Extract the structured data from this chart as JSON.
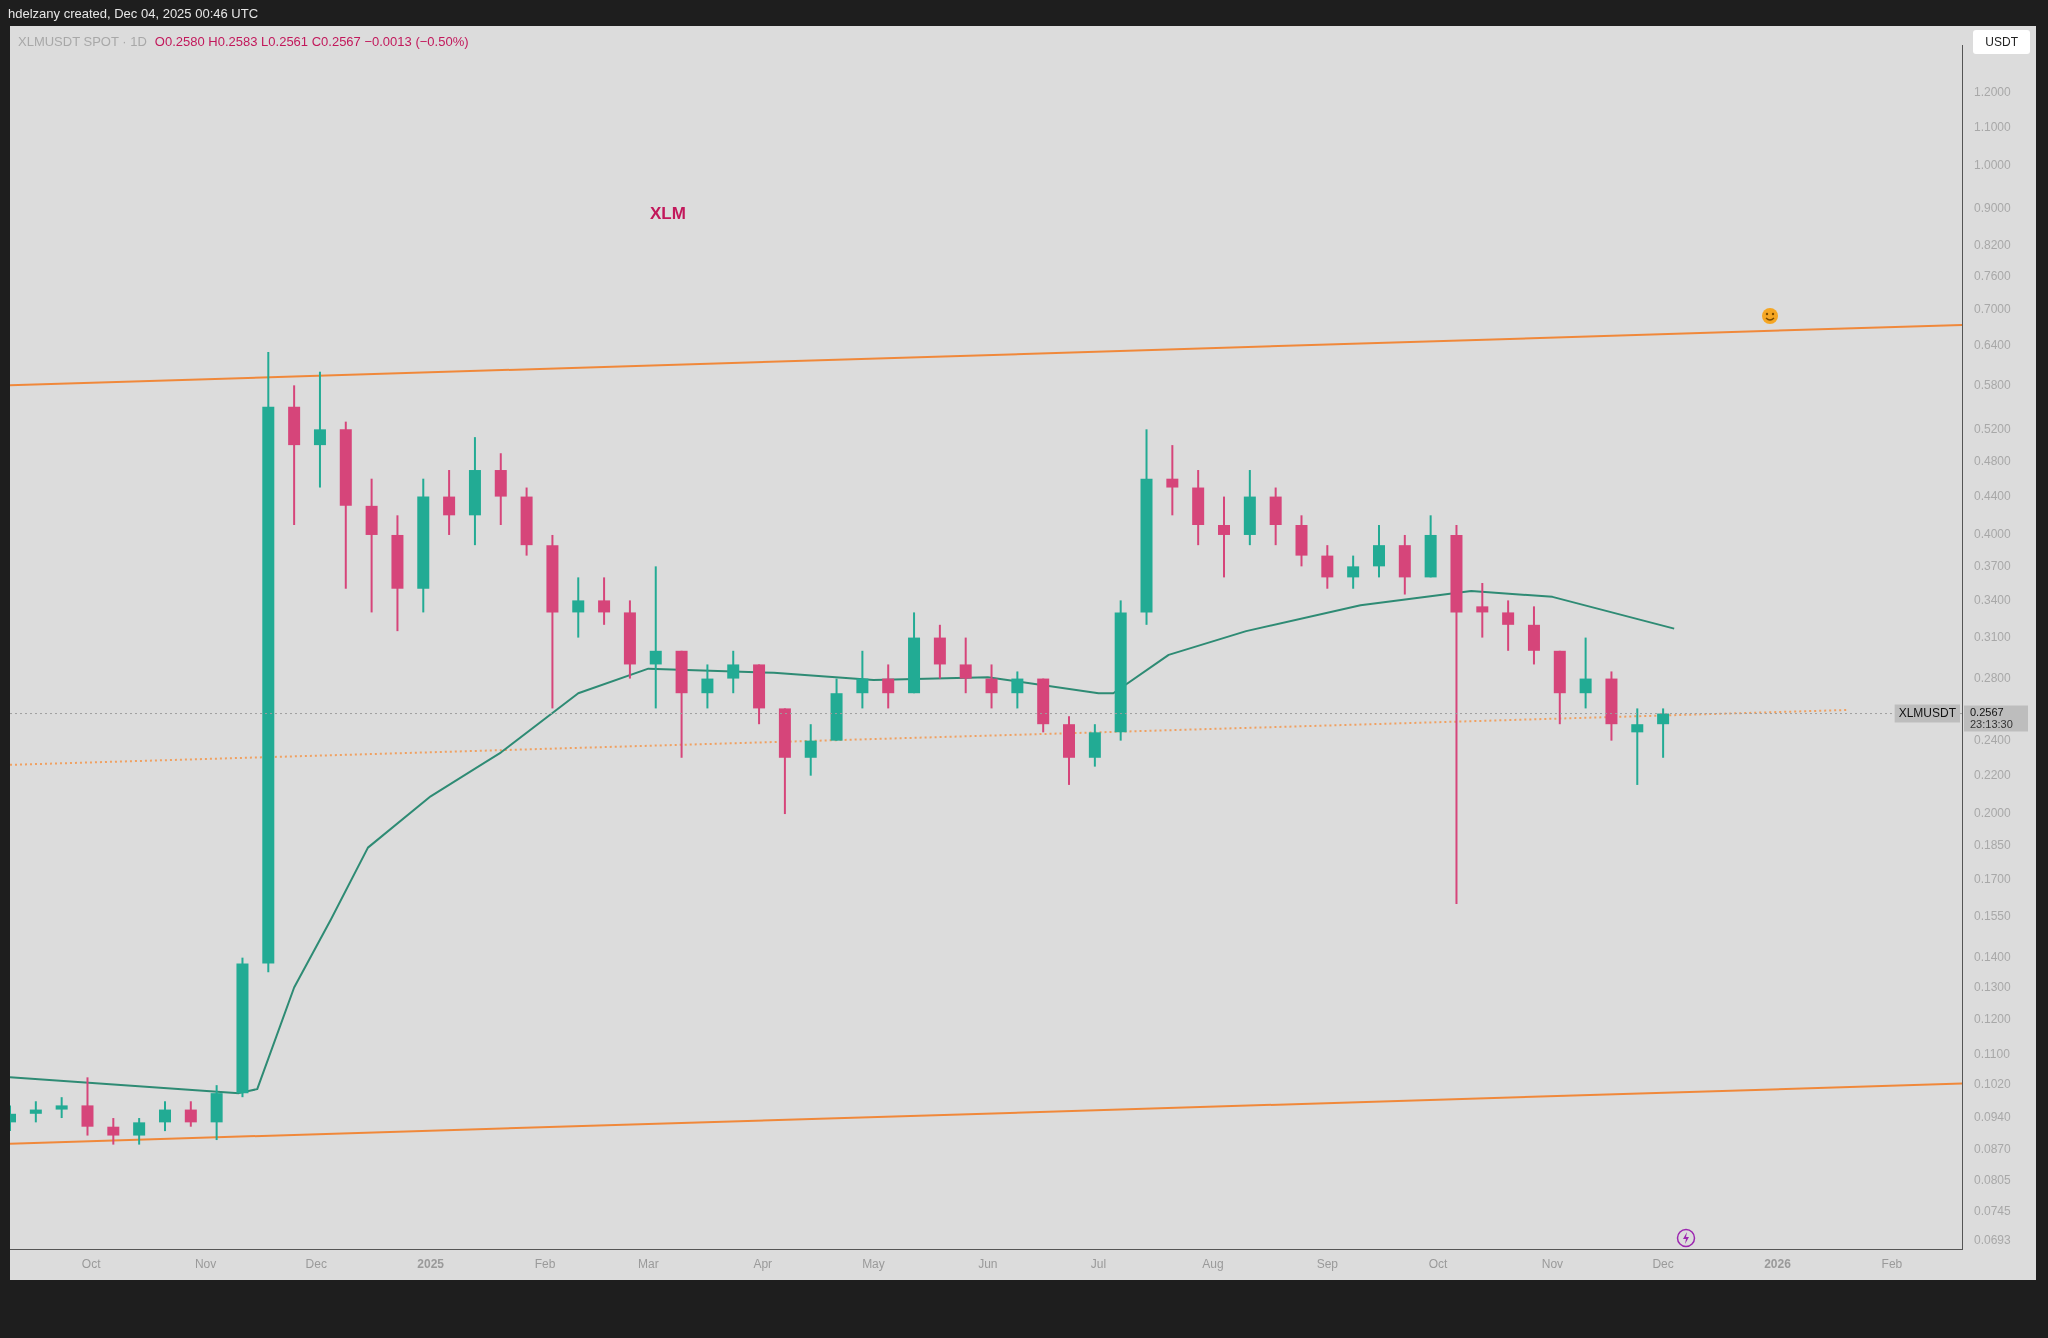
{
  "chart_data": {
    "type": "candlestick",
    "title": "XLMUSDT SPOT · 1D",
    "subtitle": "O0.2580 H0.2583 L0.2561 C0.2567 −0.0013 (−0.50%)",
    "ylabel": "USDT",
    "annotations": [
      "hdelzany created, Dec 04, 2025 00:46 UTC",
      "XLM",
      "0.2567",
      "23:13:30"
    ],
    "x": [
      "2024-09-09",
      "2024-09-16",
      "2024-09-23",
      "2024-09-30",
      "2024-10-07",
      "2024-10-14",
      "2024-10-21",
      "2024-10-28",
      "2024-11-04",
      "2024-11-11",
      "2024-11-18",
      "2024-11-25",
      "2024-12-02",
      "2024-12-09",
      "2024-12-16",
      "2024-12-23",
      "2024-12-30",
      "2025-01-06",
      "2025-01-13",
      "2025-01-20",
      "2025-01-27",
      "2025-02-03",
      "2025-02-10",
      "2025-02-17",
      "2025-02-24",
      "2025-03-03",
      "2025-03-10",
      "2025-03-17",
      "2025-03-24",
      "2025-03-31",
      "2025-04-07",
      "2025-04-14",
      "2025-04-21",
      "2025-04-28",
      "2025-05-05",
      "2025-05-12",
      "2025-05-19",
      "2025-05-26",
      "2025-06-02",
      "2025-06-09",
      "2025-06-16",
      "2025-06-23",
      "2025-06-30",
      "2025-07-07",
      "2025-07-14",
      "2025-07-21",
      "2025-07-28",
      "2025-08-04",
      "2025-08-11",
      "2025-08-18",
      "2025-08-25",
      "2025-09-01",
      "2025-09-08",
      "2025-09-15",
      "2025-09-22",
      "2025-09-29",
      "2025-10-06",
      "2025-10-13",
      "2025-10-20",
      "2025-10-27",
      "2025-11-03",
      "2025-11-10",
      "2025-11-17",
      "2025-11-24",
      "2025-12-01"
    ],
    "ohlc": [
      [
        0.093,
        0.097,
        0.091,
        0.095
      ],
      [
        0.095,
        0.098,
        0.093,
        0.096
      ],
      [
        0.096,
        0.099,
        0.094,
        0.097
      ],
      [
        0.097,
        0.104,
        0.09,
        0.092
      ],
      [
        0.092,
        0.094,
        0.088,
        0.09
      ],
      [
        0.09,
        0.094,
        0.088,
        0.093
      ],
      [
        0.093,
        0.098,
        0.091,
        0.096
      ],
      [
        0.096,
        0.098,
        0.092,
        0.093
      ],
      [
        0.093,
        0.102,
        0.089,
        0.1
      ],
      [
        0.1,
        0.14,
        0.099,
        0.138
      ],
      [
        0.138,
        0.63,
        0.135,
        0.55
      ],
      [
        0.55,
        0.58,
        0.41,
        0.5
      ],
      [
        0.5,
        0.6,
        0.45,
        0.52
      ],
      [
        0.52,
        0.53,
        0.35,
        0.43
      ],
      [
        0.43,
        0.46,
        0.33,
        0.4
      ],
      [
        0.4,
        0.42,
        0.315,
        0.35
      ],
      [
        0.35,
        0.46,
        0.33,
        0.44
      ],
      [
        0.44,
        0.47,
        0.4,
        0.42
      ],
      [
        0.42,
        0.51,
        0.39,
        0.47
      ],
      [
        0.47,
        0.49,
        0.41,
        0.44
      ],
      [
        0.44,
        0.45,
        0.38,
        0.39
      ],
      [
        0.39,
        0.4,
        0.26,
        0.33
      ],
      [
        0.33,
        0.36,
        0.31,
        0.34
      ],
      [
        0.34,
        0.36,
        0.32,
        0.33
      ],
      [
        0.33,
        0.34,
        0.28,
        0.29
      ],
      [
        0.29,
        0.37,
        0.26,
        0.3
      ],
      [
        0.3,
        0.3,
        0.23,
        0.27
      ],
      [
        0.27,
        0.29,
        0.26,
        0.28
      ],
      [
        0.28,
        0.3,
        0.27,
        0.29
      ],
      [
        0.29,
        0.29,
        0.25,
        0.26
      ],
      [
        0.26,
        0.26,
        0.2,
        0.23
      ],
      [
        0.23,
        0.25,
        0.22,
        0.24
      ],
      [
        0.24,
        0.28,
        0.24,
        0.27
      ],
      [
        0.27,
        0.3,
        0.26,
        0.28
      ],
      [
        0.28,
        0.29,
        0.26,
        0.27
      ],
      [
        0.27,
        0.33,
        0.27,
        0.31
      ],
      [
        0.31,
        0.32,
        0.28,
        0.29
      ],
      [
        0.29,
        0.31,
        0.27,
        0.28
      ],
      [
        0.28,
        0.29,
        0.26,
        0.27
      ],
      [
        0.27,
        0.285,
        0.26,
        0.28
      ],
      [
        0.28,
        0.28,
        0.245,
        0.25
      ],
      [
        0.25,
        0.255,
        0.215,
        0.23
      ],
      [
        0.23,
        0.25,
        0.225,
        0.245
      ],
      [
        0.245,
        0.34,
        0.24,
        0.33
      ],
      [
        0.33,
        0.52,
        0.32,
        0.46
      ],
      [
        0.46,
        0.5,
        0.42,
        0.45
      ],
      [
        0.45,
        0.47,
        0.39,
        0.41
      ],
      [
        0.41,
        0.44,
        0.36,
        0.4
      ],
      [
        0.4,
        0.47,
        0.39,
        0.44
      ],
      [
        0.44,
        0.45,
        0.39,
        0.41
      ],
      [
        0.41,
        0.42,
        0.37,
        0.38
      ],
      [
        0.38,
        0.39,
        0.35,
        0.36
      ],
      [
        0.36,
        0.38,
        0.35,
        0.37
      ],
      [
        0.37,
        0.41,
        0.36,
        0.39
      ],
      [
        0.39,
        0.4,
        0.345,
        0.36
      ],
      [
        0.36,
        0.42,
        0.36,
        0.4
      ],
      [
        0.4,
        0.41,
        0.16,
        0.33
      ],
      [
        0.335,
        0.355,
        0.31,
        0.33
      ],
      [
        0.33,
        0.34,
        0.3,
        0.32
      ],
      [
        0.32,
        0.335,
        0.29,
        0.3
      ],
      [
        0.3,
        0.3,
        0.25,
        0.27
      ],
      [
        0.27,
        0.31,
        0.26,
        0.28
      ],
      [
        0.28,
        0.285,
        0.24,
        0.25
      ],
      [
        0.245,
        0.26,
        0.215,
        0.25
      ],
      [
        0.25,
        0.26,
        0.23,
        0.2567
      ]
    ],
    "colors": [
      "#22ab94",
      "#22ab94",
      "#22ab94",
      "#d6457a",
      "#d6457a",
      "#22ab94",
      "#22ab94",
      "#d6457a",
      "#22ab94",
      "#22ab94",
      "#22ab94",
      "#d6457a",
      "#22ab94",
      "#d6457a",
      "#d6457a",
      "#d6457a",
      "#22ab94",
      "#d6457a",
      "#22ab94",
      "#d6457a",
      "#d6457a",
      "#d6457a",
      "#22ab94",
      "#d6457a",
      "#d6457a",
      "#22ab94",
      "#d6457a",
      "#22ab94",
      "#22ab94",
      "#d6457a",
      "#d6457a",
      "#22ab94",
      "#22ab94",
      "#22ab94",
      "#d6457a",
      "#22ab94",
      "#d6457a",
      "#d6457a",
      "#d6457a",
      "#22ab94",
      "#d6457a",
      "#d6457a",
      "#22ab94",
      "#22ab94",
      "#22ab94",
      "#d6457a",
      "#d6457a",
      "#d6457a",
      "#22ab94",
      "#d6457a",
      "#d6457a",
      "#d6457a",
      "#22ab94",
      "#22ab94",
      "#d6457a",
      "#22ab94",
      "#d6457a",
      "#d6457a",
      "#d6457a",
      "#d6457a",
      "#d6457a",
      "#22ab94",
      "#d6457a",
      "#22ab94",
      "#22ab94"
    ],
    "series": [
      {
        "type": "line",
        "color": "#2e8b74",
        "x": [
          "2024-09-09",
          "2024-11-10",
          "2024-11-15",
          "2024-11-25",
          "2024-12-05",
          "2024-12-15",
          "2025-01-01",
          "2025-01-20",
          "2025-02-10",
          "2025-03-01",
          "2025-04-04",
          "2025-05-01",
          "2025-06-01",
          "2025-07-01",
          "2025-07-05",
          "2025-07-20",
          "2025-08-10",
          "2025-09-10",
          "2025-10-10",
          "2025-11-01",
          "2025-12-04"
        ],
        "values": [
          0.104,
          0.1,
          0.101,
          0.13,
          0.154,
          0.184,
          0.209,
          0.233,
          0.27,
          0.287,
          0.284,
          0.279,
          0.281,
          0.27,
          0.27,
          0.297,
          0.315,
          0.336,
          0.348,
          0.343,
          0.317
        ]
      },
      {
        "type": "line",
        "color": "#f0883a",
        "x": [
          "2024-09-09",
          "2026-02-20"
        ],
        "values": [
          0.58,
          0.674
        ]
      },
      {
        "type": "line",
        "color": "#f0883a",
        "x": [
          "2024-09-09",
          "2026-02-20"
        ],
        "values": [
          0.0882,
          0.1024
        ]
      },
      {
        "type": "line",
        "color": "#f0a060",
        "line_style": "dotted",
        "x": [
          "2024-09-09",
          "2026-01-20"
        ],
        "values": [
          0.226,
          0.259
        ]
      }
    ],
    "ref_lines": [
      {
        "axis": "y",
        "value": 0.2567,
        "label": "XLMUSDT",
        "color": "#9e9e9e",
        "line_style": "dotted"
      }
    ],
    "xlim": [
      "2024-09-09",
      "2026-02-20"
    ],
    "xticks": [
      {
        "value": "2024-10-01",
        "label": "Oct"
      },
      {
        "value": "2024-11-01",
        "label": "Nov"
      },
      {
        "value": "2024-12-01",
        "label": "Dec"
      },
      {
        "value": "2025-01-01",
        "label": "2025"
      },
      {
        "value": "2025-02-01",
        "label": "Feb"
      },
      {
        "value": "2025-03-01",
        "label": "Mar"
      },
      {
        "value": "2025-04-01",
        "label": "Apr"
      },
      {
        "value": "2025-05-01",
        "label": "May"
      },
      {
        "value": "2025-06-01",
        "label": "Jun"
      },
      {
        "value": "2025-07-01",
        "label": "Jul"
      },
      {
        "value": "2025-08-01",
        "label": "Aug"
      },
      {
        "value": "2025-09-01",
        "label": "Sep"
      },
      {
        "value": "2025-10-01",
        "label": "Oct"
      },
      {
        "value": "2025-11-01",
        "label": "Nov"
      },
      {
        "value": "2025-12-01",
        "label": "Dec"
      },
      {
        "value": "2026-01-01",
        "label": "2026"
      },
      {
        "value": "2026-02-01",
        "label": "Feb"
      }
    ],
    "ylim": [
      0.0678,
      1.35
    ],
    "log": true,
    "grid": false,
    "legend": false,
    "yticks": [
      {
        "value": 1.2,
        "label": "1.2000"
      },
      {
        "value": 1.1,
        "label": "1.1000"
      },
      {
        "value": 1.0,
        "label": "1.0000"
      },
      {
        "value": 0.9,
        "label": "0.9000"
      },
      {
        "value": 0.82,
        "label": "0.8200"
      },
      {
        "value": 0.76,
        "label": "0.7600"
      },
      {
        "value": 0.7,
        "label": "0.7000"
      },
      {
        "value": 0.64,
        "label": "0.6400"
      },
      {
        "value": 0.58,
        "label": "0.5800"
      },
      {
        "value": 0.52,
        "label": "0.5200"
      },
      {
        "value": 0.48,
        "label": "0.4800"
      },
      {
        "value": 0.44,
        "label": "0.4400"
      },
      {
        "value": 0.4,
        "label": "0.4000"
      },
      {
        "value": 0.37,
        "label": "0.3700"
      },
      {
        "value": 0.34,
        "label": "0.3400"
      },
      {
        "value": 0.31,
        "label": "0.3100"
      },
      {
        "value": 0.28,
        "label": "0.2800"
      },
      {
        "value": 0.24,
        "label": "0.2400"
      },
      {
        "value": 0.22,
        "label": "0.2200"
      },
      {
        "value": 0.2,
        "label": "0.2000"
      },
      {
        "value": 0.185,
        "label": "0.1850"
      },
      {
        "value": 0.17,
        "label": "0.1700"
      },
      {
        "value": 0.155,
        "label": "0.1550"
      },
      {
        "value": 0.14,
        "label": "0.1400"
      },
      {
        "value": 0.13,
        "label": "0.1300"
      },
      {
        "value": 0.12,
        "label": "0.1200"
      },
      {
        "value": 0.11,
        "label": "0.1100"
      },
      {
        "value": 0.102,
        "label": "0.1020"
      },
      {
        "value": 0.094,
        "label": "0.0940"
      },
      {
        "value": 0.087,
        "label": "0.0870"
      },
      {
        "value": 0.0805,
        "label": "0.0805"
      },
      {
        "value": 0.0745,
        "label": "0.0745"
      },
      {
        "value": 0.0693,
        "label": "0.0693"
      }
    ]
  }
}
